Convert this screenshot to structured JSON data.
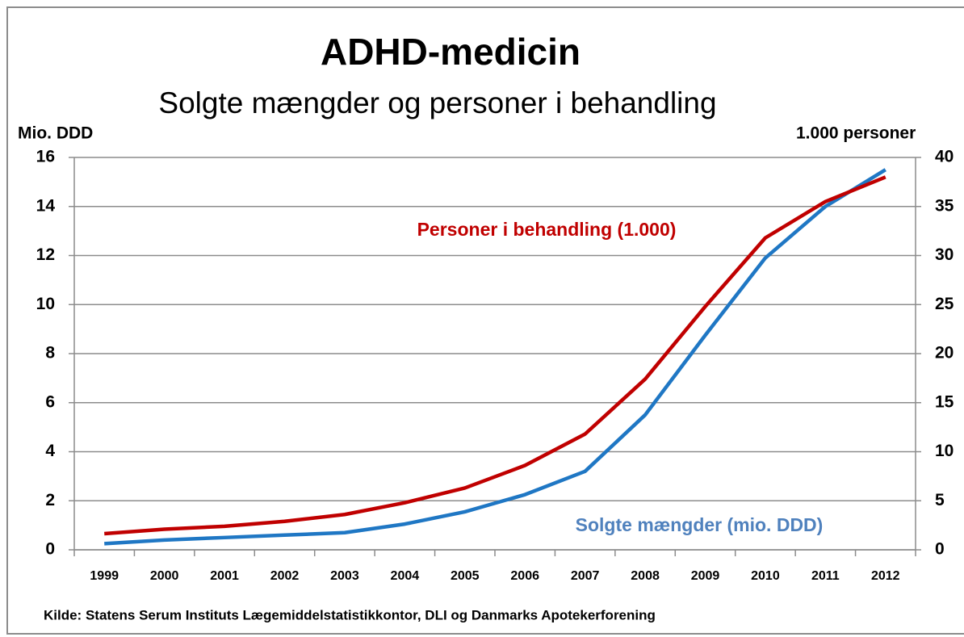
{
  "chart_data": {
    "type": "line",
    "title": "ADHD-medicin",
    "subtitle": "Solgte mængder og personer i behandling",
    "y_label": "Mio. DDD",
    "y2_label": "1.000 personer",
    "source": "Kilde: Statens Serum Instituts Lægemiddelstatistikkontor,  DLI og Danmarks Apotekerforening",
    "categories": [
      "1999",
      "2000",
      "2001",
      "2002",
      "2003",
      "2004",
      "2005",
      "2006",
      "2007",
      "2008",
      "2009",
      "2010",
      "2011",
      "2012"
    ],
    "series": [
      {
        "name": "Solgte mængder (mio. DDD)",
        "color": "#1f77c4",
        "values": [
          0.25,
          0.4,
          0.5,
          0.6,
          0.7,
          1.05,
          1.55,
          2.25,
          3.2,
          5.5,
          8.75,
          11.9,
          14.0,
          15.5
        ]
      },
      {
        "name": "Personer i behandling (1.000)",
        "color": "#c00000",
        "axis": "y2",
        "values": [
          1.65,
          2.1,
          2.4,
          2.9,
          3.6,
          4.8,
          6.3,
          8.6,
          11.8,
          17.4,
          24.8,
          31.8,
          35.5,
          38
        ]
      }
    ],
    "ylim": [
      0,
      16
    ],
    "yticks": [
      0,
      2,
      4,
      6,
      8,
      10,
      12,
      14,
      16
    ],
    "y2lim": [
      0,
      40
    ],
    "y2ticks": [
      0,
      5,
      10,
      15,
      20,
      25,
      30,
      35,
      40
    ],
    "grid": true
  }
}
